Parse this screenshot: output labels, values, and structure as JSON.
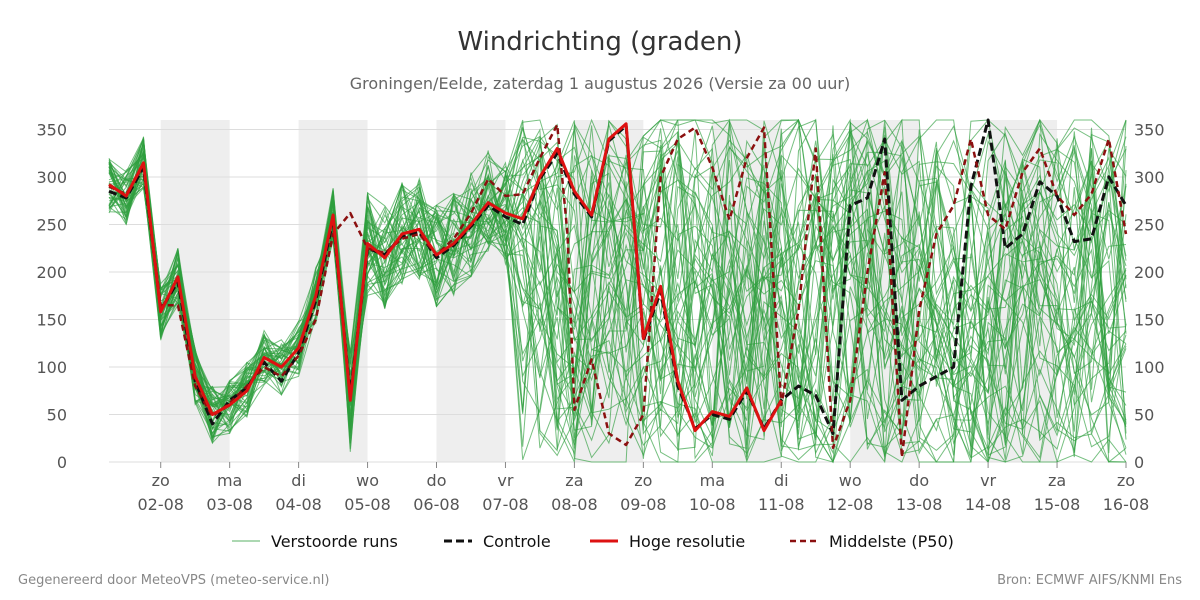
{
  "chart_data": {
    "type": "line",
    "title": "Windrichting (graden)",
    "subtitle": "Groningen/Eelde, zaterdag  1 augustus 2026 (Versie za 00 uur)",
    "ylim": [
      0,
      360
    ],
    "yticks": [
      0,
      50,
      100,
      150,
      200,
      250,
      300,
      350
    ],
    "x_days": [
      {
        "day": "zo",
        "date": "02-08",
        "shaded": true
      },
      {
        "day": "ma",
        "date": "03-08",
        "shaded": false
      },
      {
        "day": "di",
        "date": "04-08",
        "shaded": true
      },
      {
        "day": "wo",
        "date": "05-08",
        "shaded": false
      },
      {
        "day": "do",
        "date": "06-08",
        "shaded": true
      },
      {
        "day": "vr",
        "date": "07-08",
        "shaded": false
      },
      {
        "day": "za",
        "date": "08-08",
        "shaded": true
      },
      {
        "day": "zo",
        "date": "09-08",
        "shaded": false
      },
      {
        "day": "ma",
        "date": "10-08",
        "shaded": true
      },
      {
        "day": "di",
        "date": "11-08",
        "shaded": false
      },
      {
        "day": "wo",
        "date": "12-08",
        "shaded": true
      },
      {
        "day": "do",
        "date": "13-08",
        "shaded": false
      },
      {
        "day": "vr",
        "date": "14-08",
        "shaded": true
      },
      {
        "day": "za",
        "date": "15-08",
        "shaded": false
      },
      {
        "day": "zo",
        "date": "16-08",
        "shaded": false
      }
    ],
    "x_start_days": -0.75,
    "x_end_days": 14,
    "legend": [
      "Verstoorde runs",
      "Controle",
      "Hoge resolutie",
      "Middelste (P50)"
    ],
    "colors": {
      "ensemble": "#2e9e3e",
      "control": "#111111",
      "high_res": "#dd1111",
      "median": "#8b1010",
      "shade": "#eeeeee",
      "grid": "#dddddd"
    },
    "series": [
      {
        "name": "Hoge resolutie",
        "x": [
          -0.75,
          -0.5,
          -0.25,
          0,
          0.25,
          0.5,
          0.75,
          1,
          1.25,
          1.5,
          1.75,
          2,
          2.25,
          2.5,
          2.75,
          3,
          3.25,
          3.5,
          3.75,
          4,
          4.25,
          4.5,
          4.75,
          5,
          5.25,
          5.5,
          5.75,
          6,
          6.25,
          6.5,
          6.75,
          7,
          7.25,
          7.5,
          7.75,
          8,
          8.25,
          8.5,
          8.75,
          9
        ],
        "y": [
          292,
          280,
          315,
          158,
          195,
          90,
          50,
          60,
          75,
          110,
          100,
          120,
          175,
          260,
          65,
          230,
          215,
          240,
          245,
          218,
          230,
          250,
          273,
          262,
          256,
          300,
          330,
          285,
          260,
          340,
          356,
          130,
          185,
          85,
          33,
          53,
          48,
          78,
          33,
          65
        ]
      },
      {
        "name": "Controle",
        "x": [
          -0.75,
          -0.5,
          -0.25,
          0,
          0.25,
          0.5,
          0.75,
          1,
          1.25,
          1.5,
          1.75,
          2,
          2.25,
          2.5,
          2.75,
          3,
          3.25,
          3.5,
          3.75,
          4,
          4.25,
          4.5,
          4.75,
          5,
          5.25,
          5.5,
          5.75,
          6,
          6.25,
          6.5,
          6.75,
          7,
          7.25,
          7.5,
          7.75,
          8,
          8.25,
          8.5,
          8.75,
          9,
          9.25,
          9.5,
          9.75,
          10,
          10.25,
          10.5,
          10.75,
          11,
          11.25,
          11.5,
          11.75,
          12,
          12.25,
          12.5,
          12.75,
          13,
          13.25,
          13.5,
          13.75,
          14
        ],
        "y": [
          285,
          278,
          310,
          160,
          190,
          85,
          40,
          65,
          78,
          105,
          85,
          115,
          170,
          255,
          70,
          225,
          218,
          238,
          242,
          215,
          228,
          248,
          270,
          258,
          250,
          298,
          325,
          282,
          258,
          338,
          354,
          128,
          180,
          80,
          35,
          50,
          45,
          75,
          35,
          65,
          80,
          70,
          30,
          270,
          278,
          340,
          65,
          80,
          90,
          100,
          290,
          360,
          225,
          240,
          295,
          280,
          232,
          235,
          300,
          270
        ]
      },
      {
        "name": "Middelste (P50)",
        "x": [
          -0.75,
          -0.5,
          -0.25,
          0,
          0.25,
          0.5,
          0.75,
          1,
          1.25,
          1.5,
          1.75,
          2,
          2.25,
          2.5,
          2.75,
          3,
          3.25,
          3.5,
          3.75,
          4,
          4.25,
          4.5,
          4.75,
          5,
          5.25,
          5.5,
          5.75,
          5.9,
          6,
          6.25,
          6.5,
          6.75,
          7,
          7.25,
          7.5,
          7.75,
          8,
          8.25,
          8.5,
          8.75,
          9,
          9.25,
          9.5,
          9.75,
          10,
          10.25,
          10.5,
          10.75,
          11,
          11.25,
          11.5,
          11.75,
          12,
          12.25,
          12.5,
          12.75,
          13,
          13.25,
          13.5,
          13.75,
          14
        ],
        "y": [
          290,
          282,
          312,
          165,
          165,
          80,
          48,
          62,
          80,
          100,
          90,
          112,
          150,
          240,
          262,
          225,
          220,
          235,
          240,
          218,
          235,
          262,
          298,
          280,
          282,
          320,
          355,
          240,
          55,
          108,
          30,
          18,
          50,
          300,
          340,
          352,
          310,
          255,
          320,
          352,
          60,
          160,
          330,
          15,
          65,
          200,
          305,
          5,
          160,
          240,
          270,
          340,
          260,
          245,
          305,
          330,
          280,
          260,
          282,
          340,
          240
        ]
      }
    ]
  },
  "footer": {
    "left": "Gegenereerd door MeteoVPS (meteo-service.nl)",
    "right": "Bron: ECMWF AIFS/KNMI Ens"
  }
}
